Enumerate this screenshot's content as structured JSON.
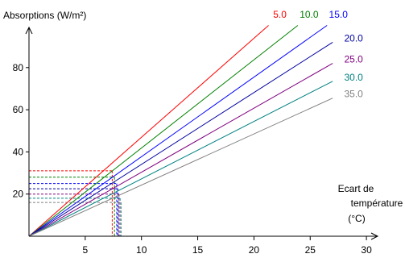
{
  "chart_data": {
    "type": "line",
    "ylabel": "Absorptions (W/m²)",
    "xlabel_lines": [
      "Ecart de",
      "température",
      "(°C)"
    ],
    "xlim": [
      0,
      30
    ],
    "ylim": [
      0,
      100
    ],
    "x_ticks": [
      5,
      10,
      15,
      20,
      25,
      30
    ],
    "y_ticks": [
      20,
      40,
      60,
      80
    ],
    "grid": false,
    "legend": "line-end labels, top-right",
    "series": [
      {
        "name": "5.0",
        "color": "#ff0000",
        "x": [
          0,
          21.3
        ],
        "y": [
          0,
          100
        ]
      },
      {
        "name": "10.0",
        "color": "#008000",
        "x": [
          0,
          23.9
        ],
        "y": [
          0,
          100
        ]
      },
      {
        "name": "15.0",
        "color": "#0000ff",
        "x": [
          0,
          26.5
        ],
        "y": [
          0,
          100
        ]
      },
      {
        "name": "20.0",
        "color": "#0000a0",
        "x": [
          0,
          27.0
        ],
        "y": [
          0,
          92
        ]
      },
      {
        "name": "25.0",
        "color": "#800080",
        "x": [
          0,
          27.0
        ],
        "y": [
          0,
          82
        ]
      },
      {
        "name": "30.0",
        "color": "#008080",
        "x": [
          0,
          27.0
        ],
        "y": [
          0,
          73.5
        ]
      },
      {
        "name": "35.0",
        "color": "#808080",
        "x": [
          0,
          27.0
        ],
        "y": [
          0,
          65.5
        ]
      }
    ],
    "reference_lines": [
      {
        "color": "#ff0000",
        "x": 7.4,
        "y": 31
      },
      {
        "color": "#008000",
        "x": 7.6,
        "y": 28
      },
      {
        "color": "#0000ff",
        "x": 7.8,
        "y": 25
      },
      {
        "color": "#0000a0",
        "x": 7.9,
        "y": 22.5
      },
      {
        "color": "#800080",
        "x": 8.0,
        "y": 20
      },
      {
        "color": "#008080",
        "x": 8.1,
        "y": 18
      },
      {
        "color": "#808080",
        "x": 8.2,
        "y": 16
      }
    ]
  }
}
